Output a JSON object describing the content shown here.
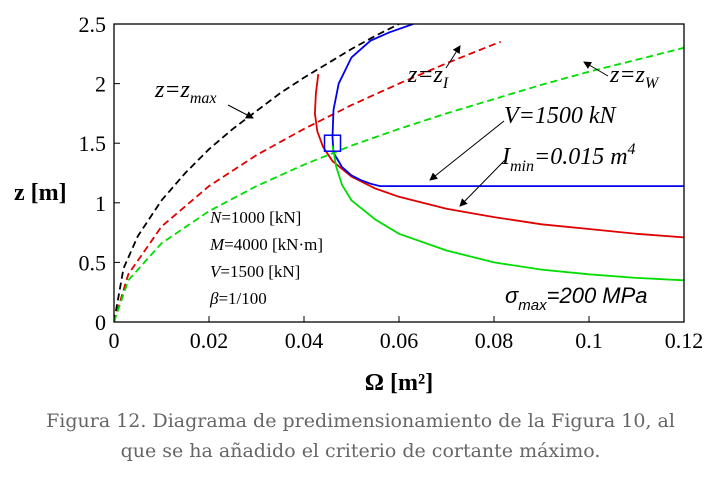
{
  "chart_data": {
    "type": "line",
    "xlabel": "Ω [m²]",
    "ylabel": "z [m]",
    "xlim": [
      0,
      0.12
    ],
    "ylim": [
      0,
      2.5
    ],
    "xticks": [
      "0",
      "0.02",
      "0.04",
      "0.06",
      "0.08",
      "0.1",
      "0.12"
    ],
    "yticks": [
      "0",
      "0.5",
      "1",
      "1.5",
      "2",
      "2.5"
    ],
    "grid": false,
    "series": [
      {
        "name": "z=z_max",
        "color": "#000000",
        "dash": true,
        "x": [
          0,
          0.002,
          0.005,
          0.01,
          0.015,
          0.02,
          0.025,
          0.03,
          0.035,
          0.04,
          0.045,
          0.05,
          0.055,
          0.06
        ],
        "y": [
          0,
          0.45,
          0.72,
          1.02,
          1.25,
          1.45,
          1.62,
          1.77,
          1.92,
          2.05,
          2.17,
          2.29,
          2.4,
          2.5
        ]
      },
      {
        "name": "z=z_I",
        "color": "#e00000",
        "dash": true,
        "x": [
          0,
          0.003,
          0.01,
          0.02,
          0.03,
          0.04,
          0.05,
          0.06,
          0.07,
          0.08,
          0.0814
        ],
        "y": [
          0,
          0.4,
          0.8,
          1.14,
          1.4,
          1.62,
          1.82,
          2.0,
          2.17,
          2.33,
          2.35
        ]
      },
      {
        "name": "z=z_W",
        "color": "#00dd00",
        "dash": true,
        "x": [
          0,
          0.003,
          0.01,
          0.02,
          0.03,
          0.04,
          0.05,
          0.06,
          0.07,
          0.08,
          0.09,
          0.1,
          0.11,
          0.12
        ],
        "y": [
          0,
          0.35,
          0.66,
          0.93,
          1.14,
          1.32,
          1.48,
          1.62,
          1.75,
          1.87,
          1.99,
          2.1,
          2.2,
          2.3
        ]
      },
      {
        "name": "I_min=0.015 m^4",
        "color": "#e00000",
        "dash": false,
        "x": [
          0.043,
          0.0425,
          0.0423,
          0.0428,
          0.044,
          0.046,
          0.05,
          0.055,
          0.06,
          0.07,
          0.08,
          0.09,
          0.1,
          0.11,
          0.12
        ],
        "y": [
          2.08,
          1.92,
          1.75,
          1.6,
          1.47,
          1.35,
          1.22,
          1.12,
          1.05,
          0.95,
          0.88,
          0.82,
          0.78,
          0.74,
          0.71
        ]
      },
      {
        "name": "V=1500 kN",
        "color": "#0000ee",
        "dash": false,
        "x": [
          0.063,
          0.058,
          0.054,
          0.05,
          0.0473,
          0.0462,
          0.046,
          0.0462,
          0.048,
          0.05,
          0.052,
          0.054,
          0.056,
          0.06,
          0.08,
          0.1,
          0.12
        ],
        "y": [
          2.5,
          2.43,
          2.36,
          2.22,
          2.0,
          1.78,
          1.55,
          1.42,
          1.3,
          1.23,
          1.19,
          1.16,
          1.14,
          1.14,
          1.14,
          1.14,
          1.14
        ]
      },
      {
        "name": "σ_max=200 MPa",
        "color": "#00dd00",
        "dash": false,
        "x": [
          0.046,
          0.0468,
          0.048,
          0.05,
          0.055,
          0.06,
          0.07,
          0.08,
          0.09,
          0.1,
          0.11,
          0.12
        ],
        "y": [
          1.48,
          1.3,
          1.15,
          1.02,
          0.86,
          0.74,
          0.6,
          0.5,
          0.44,
          0.4,
          0.37,
          0.35
        ]
      }
    ],
    "marker": {
      "shape": "square",
      "x": 0.046,
      "y": 1.5,
      "color": "#0000ee"
    },
    "annotations": {
      "zmax": "z=z",
      "zmax_sub": "max",
      "zI": "z=z",
      "zI_sub": "I",
      "zW": "z=z",
      "zW_sub": "W",
      "V": "V=1500 kN",
      "Imin": "I",
      "Imin_sub": "min",
      "Imin_rest": "=0.015 m",
      "Imin_sup": "4",
      "sigma": "σ",
      "sigma_sub": "max",
      "sigma_rest": "=200 MPa"
    },
    "params": {
      "N_sym": "N",
      "N_val": "=1000 [kN]",
      "M_sym": "M",
      "M_val": "=4000 [kN·m]",
      "V_sym": "V",
      "V_val": "=1500 [kN]",
      "beta_sym": "β",
      "beta_val": "=1/100"
    }
  },
  "caption": {
    "line1": "Figura 12. Diagrama de predimensionamiento de la Figura 10, al",
    "line2": "que se ha añadido el criterio de cortante máximo."
  }
}
